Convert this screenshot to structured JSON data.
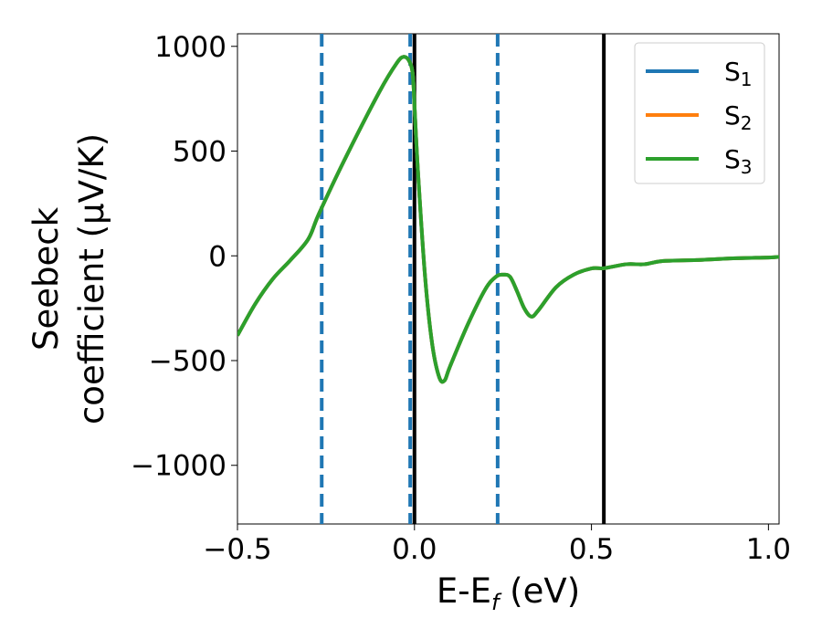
{
  "chart_data": {
    "type": "line",
    "xlabel": "E-E",
    "xlabel_sub": "f",
    "xlabel_unit": " (eV)",
    "ylabel_line1": "Seebeck",
    "ylabel_line2": "coefficient  (μV/K)",
    "xlim": [
      -0.5,
      1.03
    ],
    "ylim": [
      -1280,
      1060
    ],
    "x_ticks": [
      -0.5,
      0.0,
      0.5,
      1.0
    ],
    "x_tick_labels": [
      "−0.5",
      "0.0",
      "0.5",
      "1.0"
    ],
    "y_ticks": [
      -1000,
      -500,
      0,
      500,
      1000
    ],
    "y_tick_labels": [
      "−1000",
      "−500",
      "0",
      "500",
      "1000"
    ],
    "legend_position": "top-right",
    "colors": {
      "S1": "#1f77b4",
      "S2": "#ff7f0e",
      "S3": "#2ca02c",
      "black_line": "#000000",
      "dashed_line": "#1f77b4"
    },
    "series": [
      {
        "name": "S",
        "sub": "1",
        "color": "#1f77b4"
      },
      {
        "name": "S",
        "sub": "2",
        "color": "#ff7f0e"
      },
      {
        "name": "S",
        "sub": "3",
        "color": "#2ca02c"
      }
    ],
    "curve": {
      "x": [
        -0.5,
        -0.45,
        -0.4,
        -0.35,
        -0.3,
        -0.27,
        -0.2,
        -0.1,
        -0.05,
        -0.03,
        -0.015,
        -0.005,
        0.0,
        0.01,
        0.03,
        0.05,
        0.07,
        0.085,
        0.1,
        0.15,
        0.2,
        0.23,
        0.25,
        0.27,
        0.29,
        0.31,
        0.33,
        0.35,
        0.4,
        0.45,
        0.5,
        0.53,
        0.55,
        0.6,
        0.65,
        0.7,
        0.8,
        0.9,
        1.0,
        1.03
      ],
      "y": [
        -380,
        -230,
        -110,
        -20,
        80,
        200,
        450,
        780,
        920,
        950,
        930,
        870,
        720,
        400,
        -100,
        -420,
        -580,
        -595,
        -530,
        -330,
        -160,
        -100,
        -90,
        -100,
        -170,
        -250,
        -290,
        -260,
        -150,
        -90,
        -60,
        -60,
        -55,
        -40,
        -40,
        -25,
        -20,
        -12,
        -8,
        -5
      ]
    },
    "vertical_lines_solid": [
      0.0,
      0.535
    ],
    "vertical_lines_dashed": [
      -0.262,
      -0.012,
      0.235
    ]
  }
}
